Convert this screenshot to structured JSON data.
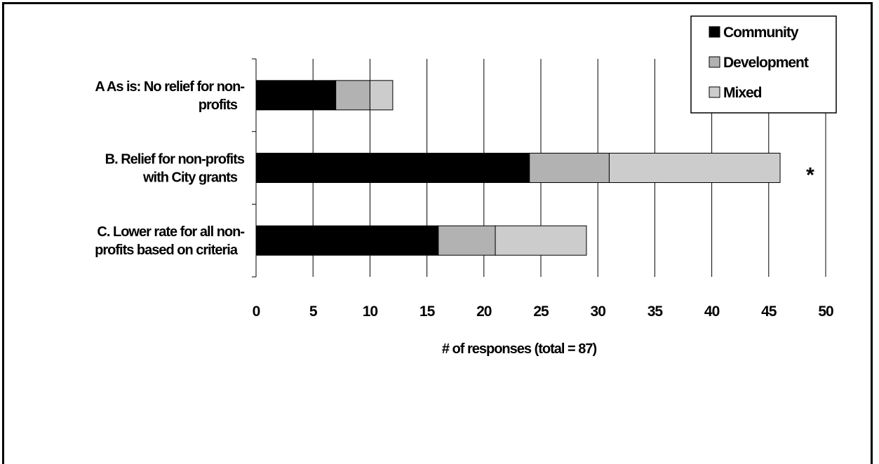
{
  "chart_data": {
    "type": "bar",
    "orientation": "horizontal",
    "stacked": true,
    "categories": [
      [
        "A  As is: No relief for non-",
        "profits"
      ],
      [
        "B. Relief for non-profits",
        "with City grants"
      ],
      [
        "C. Lower rate for all non-",
        "profits based on criteria"
      ]
    ],
    "series": [
      {
        "name": "Community",
        "color": "#000000",
        "values": [
          7,
          24,
          16
        ]
      },
      {
        "name": "Development",
        "color": "#b2b2b2",
        "values": [
          3,
          7,
          5
        ]
      },
      {
        "name": "Mixed",
        "color": "#cccccc",
        "values": [
          2,
          15,
          8
        ]
      }
    ],
    "xlabel": "# of responses (total = 87)",
    "xlim": [
      0,
      50
    ],
    "xticks": [
      "0",
      "5",
      "10",
      "15",
      "20",
      "25",
      "30",
      "35",
      "40",
      "45",
      "50"
    ],
    "grid": "vertical",
    "legend_position": "top-right",
    "annotations": [
      {
        "category_index": 1,
        "text": "*"
      }
    ]
  }
}
